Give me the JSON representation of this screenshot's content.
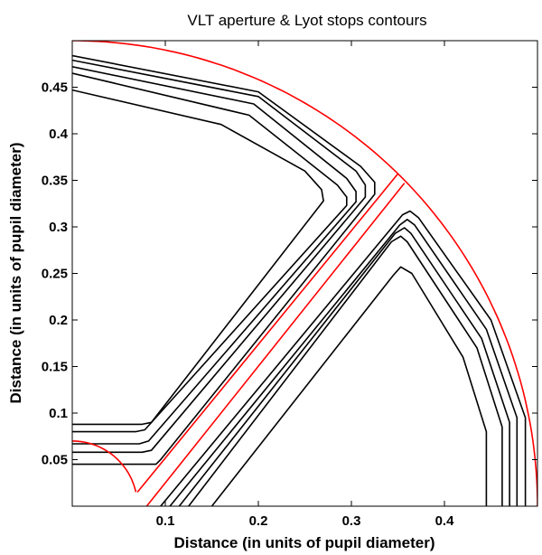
{
  "chart_data": {
    "type": "contour",
    "title": "VLT aperture & Lyot stops contours",
    "xlabel": "Distance (in units of pupil diameter)",
    "ylabel": "Distance (in units of pupil diameter)",
    "xlim": [
      0,
      0.5
    ],
    "ylim": [
      0,
      0.5
    ],
    "xticks": [
      0.1,
      0.2,
      0.3,
      0.4
    ],
    "yticks": [
      0.05,
      0.1,
      0.15,
      0.2,
      0.25,
      0.3,
      0.35,
      0.4,
      0.45
    ],
    "grid": false,
    "colors": {
      "aperture": "#ff0000",
      "lyot": "#000000"
    },
    "aperture": {
      "outer_radius": 0.5,
      "obscuration_radius": 0.07,
      "spider_strut": {
        "upper_edge": [
          [
            0.07,
            0.015
          ],
          [
            0.35,
            0.357
          ]
        ],
        "lower_edge": [
          [
            0.08,
            0.0
          ],
          [
            0.357,
            0.347
          ]
        ]
      }
    },
    "lyot_stops": {
      "upper_region": [
        [
          [
            0.0,
            0.484
          ],
          [
            0.2,
            0.445
          ],
          [
            0.31,
            0.365
          ],
          [
            0.325,
            0.348
          ],
          [
            0.325,
            0.335
          ],
          [
            0.095,
            0.05
          ],
          [
            0.09,
            0.045
          ],
          [
            0.0,
            0.045
          ]
        ],
        [
          [
            0.0,
            0.479
          ],
          [
            0.2,
            0.44
          ],
          [
            0.305,
            0.36
          ],
          [
            0.315,
            0.345
          ],
          [
            0.315,
            0.332
          ],
          [
            0.085,
            0.06
          ],
          [
            0.075,
            0.058
          ],
          [
            0.0,
            0.058
          ]
        ],
        [
          [
            0.0,
            0.472
          ],
          [
            0.195,
            0.432
          ],
          [
            0.295,
            0.352
          ],
          [
            0.305,
            0.338
          ],
          [
            0.305,
            0.327
          ],
          [
            0.082,
            0.07
          ],
          [
            0.072,
            0.067
          ],
          [
            0.0,
            0.067
          ]
        ],
        [
          [
            0.0,
            0.465
          ],
          [
            0.19,
            0.42
          ],
          [
            0.285,
            0.345
          ],
          [
            0.295,
            0.332
          ],
          [
            0.295,
            0.323
          ],
          [
            0.078,
            0.082
          ],
          [
            0.068,
            0.08
          ],
          [
            0.0,
            0.08
          ]
        ],
        [
          [
            0.0,
            0.447
          ],
          [
            0.16,
            0.41
          ],
          [
            0.25,
            0.36
          ],
          [
            0.268,
            0.34
          ],
          [
            0.27,
            0.328
          ],
          [
            0.085,
            0.09
          ],
          [
            0.075,
            0.088
          ],
          [
            0.0,
            0.088
          ]
        ]
      ],
      "lower_region": [
        [
          [
            0.095,
            0.0
          ],
          [
            0.355,
            0.313
          ],
          [
            0.363,
            0.317
          ],
          [
            0.372,
            0.31
          ],
          [
            0.45,
            0.2
          ],
          [
            0.487,
            0.095
          ],
          [
            0.487,
            0.0
          ]
        ],
        [
          [
            0.105,
            0.0
          ],
          [
            0.352,
            0.302
          ],
          [
            0.36,
            0.308
          ],
          [
            0.368,
            0.302
          ],
          [
            0.445,
            0.19
          ],
          [
            0.478,
            0.095
          ],
          [
            0.478,
            0.0
          ]
        ],
        [
          [
            0.115,
            0.0
          ],
          [
            0.347,
            0.293
          ],
          [
            0.357,
            0.299
          ],
          [
            0.364,
            0.293
          ],
          [
            0.44,
            0.18
          ],
          [
            0.47,
            0.09
          ],
          [
            0.47,
            0.0
          ]
        ],
        [
          [
            0.125,
            0.0
          ],
          [
            0.343,
            0.284
          ],
          [
            0.353,
            0.29
          ],
          [
            0.36,
            0.284
          ],
          [
            0.435,
            0.17
          ],
          [
            0.462,
            0.085
          ],
          [
            0.462,
            0.0
          ]
        ],
        [
          [
            0.15,
            0.0
          ],
          [
            0.345,
            0.248
          ],
          [
            0.353,
            0.257
          ],
          [
            0.365,
            0.25
          ],
          [
            0.42,
            0.16
          ],
          [
            0.445,
            0.08
          ],
          [
            0.445,
            0.0
          ]
        ]
      ]
    }
  }
}
